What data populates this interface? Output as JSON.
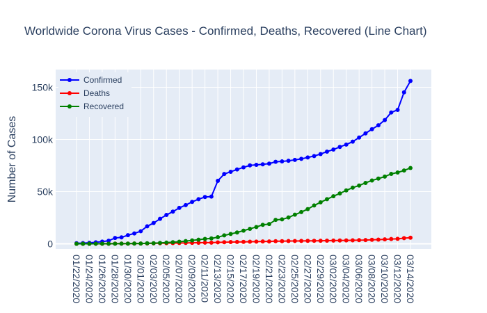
{
  "chart_data": {
    "type": "line",
    "title": "Worldwide Corona Virus Cases - Confirmed, Deaths, Recovered (Line Chart)",
    "xlabel": "",
    "ylabel": "Number of Cases",
    "x": [
      "01/22/2020",
      "01/23/2020",
      "01/24/2020",
      "01/25/2020",
      "01/26/2020",
      "01/27/2020",
      "01/28/2020",
      "01/29/2020",
      "01/30/2020",
      "01/31/2020",
      "02/01/2020",
      "02/02/2020",
      "02/03/2020",
      "02/04/2020",
      "02/05/2020",
      "02/06/2020",
      "02/07/2020",
      "02/08/2020",
      "02/09/2020",
      "02/10/2020",
      "02/11/2020",
      "02/12/2020",
      "02/13/2020",
      "02/14/2020",
      "02/15/2020",
      "02/16/2020",
      "02/17/2020",
      "02/18/2020",
      "02/19/2020",
      "02/20/2020",
      "02/21/2020",
      "02/22/2020",
      "02/23/2020",
      "02/24/2020",
      "02/25/2020",
      "02/26/2020",
      "02/27/2020",
      "02/28/2020",
      "02/29/2020",
      "03/01/2020",
      "03/02/2020",
      "03/03/2020",
      "03/04/2020",
      "03/05/2020",
      "03/06/2020",
      "03/07/2020",
      "03/08/2020",
      "03/09/2020",
      "03/10/2020",
      "03/11/2020",
      "03/12/2020",
      "03/13/2020",
      "03/14/2020"
    ],
    "x_tick_labels": [
      "01/22/2020",
      "01/24/2020",
      "01/26/2020",
      "01/28/2020",
      "01/30/2020",
      "02/01/2020",
      "02/03/2020",
      "02/05/2020",
      "02/07/2020",
      "02/09/2020",
      "02/11/2020",
      "02/13/2020",
      "02/15/2020",
      "02/17/2020",
      "02/19/2020",
      "02/21/2020",
      "02/23/2020",
      "02/25/2020",
      "02/27/2020",
      "02/29/2020",
      "03/02/2020",
      "03/04/2020",
      "03/06/2020",
      "03/08/2020",
      "03/10/2020",
      "03/12/2020",
      "03/14/2020"
    ],
    "y_ticks": [
      0,
      50000,
      100000,
      150000
    ],
    "y_tick_labels": [
      "0",
      "50k",
      "100k",
      "150k"
    ],
    "ylim": [
      -5000,
      167000
    ],
    "grid": true,
    "legend": "top-left",
    "series": [
      {
        "name": "Confirmed",
        "color": "#0000ff",
        "values": [
          555,
          654,
          941,
          1434,
          2118,
          2927,
          5578,
          6166,
          8234,
          9927,
          12038,
          16787,
          19881,
          23892,
          27635,
          30817,
          34391,
          37120,
          40150,
          42762,
          44802,
          45221,
          60368,
          66885,
          69030,
          71224,
          73258,
          75136,
          75639,
          76197,
          76819,
          78572,
          78958,
          79561,
          80406,
          81388,
          82746,
          84112,
          86011,
          88369,
          90306,
          92840,
          95120,
          97886,
          101801,
          105847,
          109821,
          113590,
          118620,
          125875,
          128343,
          145193,
          156099
        ]
      },
      {
        "name": "Deaths",
        "color": "#ff0000",
        "values": [
          17,
          18,
          26,
          42,
          56,
          82,
          131,
          133,
          171,
          213,
          259,
          362,
          426,
          492,
          564,
          634,
          719,
          806,
          906,
          1013,
          1113,
          1118,
          1371,
          1523,
          1666,
          1770,
          1868,
          2007,
          2122,
          2247,
          2251,
          2458,
          2469,
          2629,
          2708,
          2770,
          2814,
          2872,
          2941,
          2996,
          3085,
          3160,
          3254,
          3348,
          3460,
          3558,
          3802,
          3988,
          4262,
          4615,
          4720,
          5404,
          5819
        ]
      },
      {
        "name": "Recovered",
        "color": "#008000",
        "values": [
          28,
          30,
          36,
          39,
          52,
          61,
          107,
          126,
          143,
          222,
          284,
          472,
          623,
          852,
          1124,
          1487,
          2011,
          2616,
          3244,
          3946,
          4683,
          5150,
          6295,
          8058,
          9395,
          10865,
          12583,
          14352,
          16121,
          18177,
          18890,
          22886,
          23394,
          25227,
          27905,
          30384,
          33277,
          36711,
          39782,
          42716,
          45602,
          48228,
          51170,
          53796,
          55865,
          58358,
          60694,
          62494,
          64404,
          67003,
          68324,
          70251,
          72624
        ]
      }
    ]
  }
}
